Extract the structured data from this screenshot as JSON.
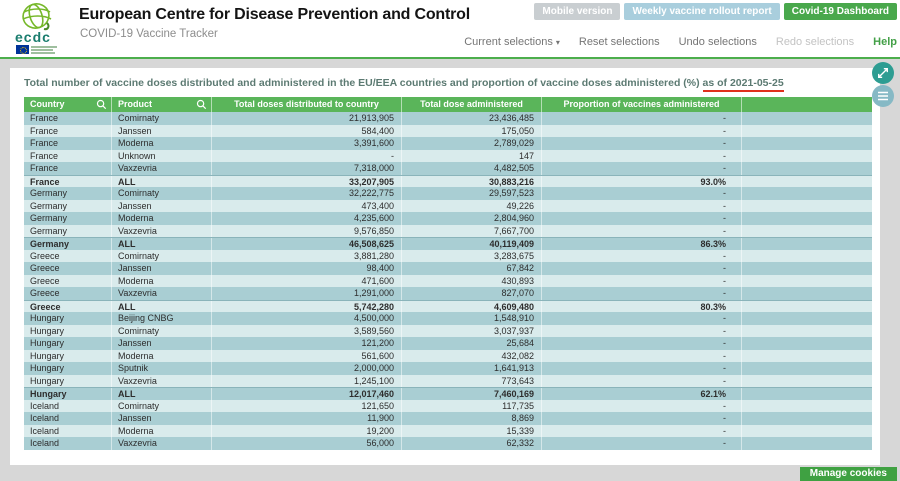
{
  "header": {
    "title": "European Centre for Disease Prevention and Control",
    "subtitle": "COVID-19 Vaccine Tracker",
    "logo_text": "ecdc",
    "buttons": [
      {
        "label": "Mobile version",
        "color": "#c9ced1"
      },
      {
        "label": "Weekly vaccine rollout report",
        "color": "#a9cedd"
      },
      {
        "label": "Covid-19 Dashboard",
        "color": "#49a84c"
      }
    ]
  },
  "menu": {
    "items": [
      {
        "label": "Current selections",
        "arrow": true
      },
      {
        "label": "Reset selections"
      },
      {
        "label": "Undo selections"
      },
      {
        "label": "Redo selections",
        "disabled": true
      },
      {
        "label": "Help",
        "highlight": true
      }
    ]
  },
  "panel": {
    "title_prefix": "Total number of vaccine doses distributed and administered in the EU/EEA countries and proportion of vaccine doses administered (%)",
    "title_date": "as of 2021-05-25"
  },
  "table": {
    "columns": [
      "Country",
      "Product",
      "Total doses distributed to country",
      "Total dose administered",
      "Proportion of vaccines administered"
    ],
    "rows": [
      {
        "country": "France",
        "product": "Comirnaty",
        "dist": "21,913,905",
        "admin": "23,436,485",
        "prop": "-"
      },
      {
        "country": "France",
        "product": "Janssen",
        "dist": "584,400",
        "admin": "175,050",
        "prop": "-"
      },
      {
        "country": "France",
        "product": "Moderna",
        "dist": "3,391,600",
        "admin": "2,789,029",
        "prop": "-"
      },
      {
        "country": "France",
        "product": "Unknown",
        "dist": "-",
        "admin": "147",
        "prop": "-"
      },
      {
        "country": "France",
        "product": "Vaxzevria",
        "dist": "7,318,000",
        "admin": "4,482,505",
        "prop": "-"
      },
      {
        "country": "France",
        "product": "ALL",
        "dist": "33,207,905",
        "admin": "30,883,216",
        "prop": "93.0%",
        "all": true
      },
      {
        "country": "Germany",
        "product": "Comirnaty",
        "dist": "32,222,775",
        "admin": "29,597,523",
        "prop": "-"
      },
      {
        "country": "Germany",
        "product": "Janssen",
        "dist": "473,400",
        "admin": "49,226",
        "prop": "-"
      },
      {
        "country": "Germany",
        "product": "Moderna",
        "dist": "4,235,600",
        "admin": "2,804,960",
        "prop": "-"
      },
      {
        "country": "Germany",
        "product": "Vaxzevria",
        "dist": "9,576,850",
        "admin": "7,667,700",
        "prop": "-"
      },
      {
        "country": "Germany",
        "product": "ALL",
        "dist": "46,508,625",
        "admin": "40,119,409",
        "prop": "86.3%",
        "all": true
      },
      {
        "country": "Greece",
        "product": "Comirnaty",
        "dist": "3,881,280",
        "admin": "3,283,675",
        "prop": "-"
      },
      {
        "country": "Greece",
        "product": "Janssen",
        "dist": "98,400",
        "admin": "67,842",
        "prop": "-"
      },
      {
        "country": "Greece",
        "product": "Moderna",
        "dist": "471,600",
        "admin": "430,893",
        "prop": "-"
      },
      {
        "country": "Greece",
        "product": "Vaxzevria",
        "dist": "1,291,000",
        "admin": "827,070",
        "prop": "-"
      },
      {
        "country": "Greece",
        "product": "ALL",
        "dist": "5,742,280",
        "admin": "4,609,480",
        "prop": "80.3%",
        "all": true,
        "mark": true
      },
      {
        "country": "Hungary",
        "product": "Beijing CNBG",
        "dist": "4,500,000",
        "admin": "1,548,910",
        "prop": "-"
      },
      {
        "country": "Hungary",
        "product": "Comirnaty",
        "dist": "3,589,560",
        "admin": "3,037,937",
        "prop": "-"
      },
      {
        "country": "Hungary",
        "product": "Janssen",
        "dist": "121,200",
        "admin": "25,684",
        "prop": "-"
      },
      {
        "country": "Hungary",
        "product": "Moderna",
        "dist": "561,600",
        "admin": "432,082",
        "prop": "-"
      },
      {
        "country": "Hungary",
        "product": "Sputnik",
        "dist": "2,000,000",
        "admin": "1,641,913",
        "prop": "-"
      },
      {
        "country": "Hungary",
        "product": "Vaxzevria",
        "dist": "1,245,100",
        "admin": "773,643",
        "prop": "-"
      },
      {
        "country": "Hungary",
        "product": "ALL",
        "dist": "12,017,460",
        "admin": "7,460,169",
        "prop": "62.1%",
        "all": true
      },
      {
        "country": "Iceland",
        "product": "Comirnaty",
        "dist": "121,650",
        "admin": "117,735",
        "prop": "-"
      },
      {
        "country": "Iceland",
        "product": "Janssen",
        "dist": "11,900",
        "admin": "8,869",
        "prop": "-"
      },
      {
        "country": "Iceland",
        "product": "Moderna",
        "dist": "19,200",
        "admin": "15,339",
        "prop": "-"
      },
      {
        "country": "Iceland",
        "product": "Vaxzevria",
        "dist": "56,000",
        "admin": "62,332",
        "prop": "-"
      }
    ],
    "annotation_color": "#e0301e",
    "underlined_columns": [
      2,
      3
    ]
  },
  "footer": {
    "manage_cookies": "Manage cookies"
  },
  "colors": {
    "table_header_green": "#5ab55a",
    "row_dark": "#a9ced3",
    "row_light": "#d9ebec",
    "menu_help_green": "#43a047",
    "rule_green": "#4cae4c",
    "fab_expand_teal": "#2d9d92",
    "fab_menu_blue": "#86b9c5",
    "cookies_green": "#3fa142",
    "annotation_red": "#e0301e"
  }
}
